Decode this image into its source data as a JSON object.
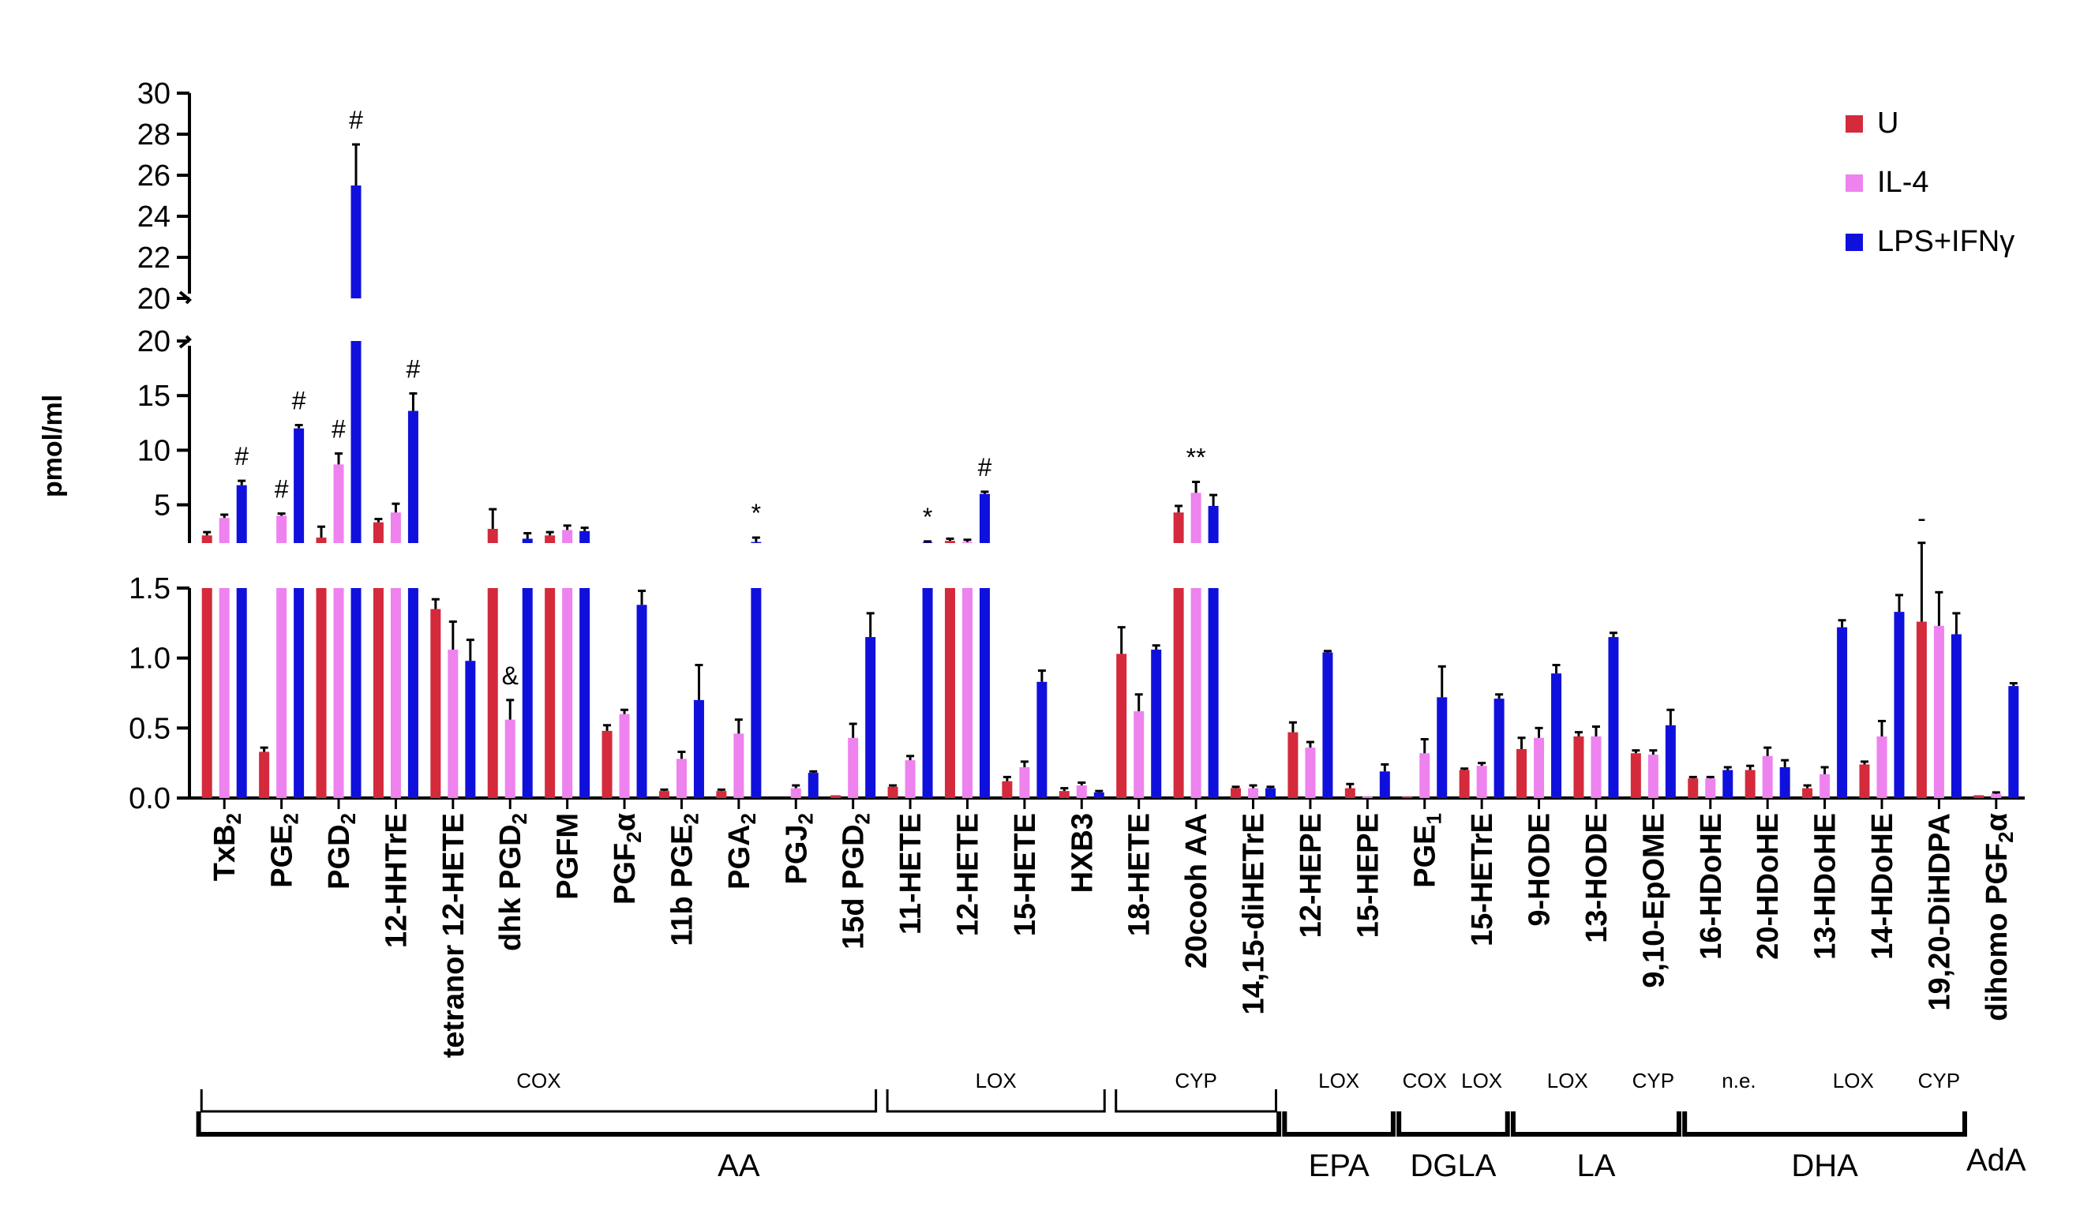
{
  "chart_data": {
    "type": "bar",
    "ylabel": "pmol/ml",
    "series": [
      {
        "name": "U",
        "color": "#d42a3c"
      },
      {
        "name": "IL-4",
        "color": "#ee82ee"
      },
      {
        "name": "LPS+IFNγ",
        "color": "#1010dd"
      }
    ],
    "axis_segments": [
      {
        "id": "top",
        "ylim": [
          20,
          30
        ],
        "ticks": [
          "20",
          "22",
          "24",
          "26",
          "28",
          "30"
        ],
        "tick_values": [
          20,
          22,
          24,
          26,
          28,
          30
        ]
      },
      {
        "id": "middle",
        "ylim": [
          1.5,
          20
        ],
        "ticks": [
          "5",
          "10",
          "15",
          "20"
        ],
        "tick_values": [
          5,
          10,
          15,
          20
        ]
      },
      {
        "id": "bottom",
        "ylim": [
          0,
          1.5
        ],
        "ticks": [
          "0.0",
          "0.5",
          "1.0",
          "1.5"
        ],
        "tick_values": [
          0,
          0.5,
          1.0,
          1.5
        ]
      }
    ],
    "categories": [
      {
        "label": "TxB",
        "sub": "2",
        "suffix": "",
        "values": [
          2.2,
          3.8,
          6.8
        ],
        "errors": [
          0.3,
          0.3,
          0.4
        ],
        "marks": [
          "",
          "",
          "#"
        ]
      },
      {
        "label": "PGE",
        "sub": "2",
        "suffix": "",
        "values": [
          0.33,
          4.0,
          12.0
        ],
        "errors": [
          0.03,
          0.2,
          0.3
        ],
        "marks": [
          "",
          "#",
          "#"
        ]
      },
      {
        "label": "PGD",
        "sub": "2",
        "suffix": "",
        "values": [
          2.0,
          8.7,
          25.5
        ],
        "errors": [
          1.0,
          1.0,
          2.0
        ],
        "marks": [
          "",
          "#",
          "#"
        ]
      },
      {
        "label": "12-HHTrE",
        "sub": "",
        "suffix": "",
        "values": [
          3.4,
          4.3,
          13.6
        ],
        "errors": [
          0.3,
          0.8,
          1.6
        ],
        "marks": [
          "",
          "",
          "#"
        ]
      },
      {
        "label": "tetranor 12-HETE",
        "sub": "",
        "suffix": "",
        "values": [
          1.35,
          1.06,
          0.98
        ],
        "errors": [
          0.07,
          0.2,
          0.15
        ],
        "marks": [
          "",
          "",
          ""
        ]
      },
      {
        "label": "dhk PGD",
        "sub": "2",
        "suffix": "",
        "values": [
          2.8,
          0.56,
          1.9
        ],
        "errors": [
          1.8,
          0.14,
          0.5
        ],
        "marks": [
          "",
          "&",
          ""
        ]
      },
      {
        "label": "PGFM",
        "sub": "",
        "suffix": "",
        "values": [
          2.2,
          2.7,
          2.6
        ],
        "errors": [
          0.3,
          0.4,
          0.3
        ],
        "marks": [
          "",
          "",
          ""
        ]
      },
      {
        "label": "PGF",
        "sub": "2",
        "suffix": "α",
        "values": [
          0.48,
          0.6,
          1.38
        ],
        "errors": [
          0.04,
          0.03,
          0.1
        ],
        "marks": [
          "",
          "",
          ""
        ]
      },
      {
        "label": "11b PGE",
        "sub": "2",
        "suffix": "",
        "values": [
          0.05,
          0.28,
          0.7
        ],
        "errors": [
          0.01,
          0.05,
          0.25
        ],
        "marks": [
          "",
          "",
          ""
        ]
      },
      {
        "label": "PGA",
        "sub": "2",
        "suffix": "",
        "values": [
          0.05,
          0.46,
          1.6
        ],
        "errors": [
          0.01,
          0.1,
          0.4
        ],
        "marks": [
          "",
          "",
          "*"
        ]
      },
      {
        "label": "PGJ",
        "sub": "2",
        "suffix": "",
        "values": [
          0.0,
          0.07,
          0.18
        ],
        "errors": [
          0,
          0.02,
          0.01
        ],
        "marks": [
          "",
          "",
          ""
        ]
      },
      {
        "label": "15d PGD",
        "sub": "2",
        "suffix": "",
        "values": [
          0.02,
          0.43,
          1.15
        ],
        "errors": [
          0.005,
          0.1,
          0.17
        ],
        "marks": [
          "",
          "",
          ""
        ]
      },
      {
        "label": "11-HETE",
        "sub": "",
        "suffix": "",
        "values": [
          0.08,
          0.27,
          1.55
        ],
        "errors": [
          0.01,
          0.03,
          0.1
        ],
        "marks": [
          "",
          "",
          "*"
        ]
      },
      {
        "label": "12-HETE",
        "sub": "",
        "suffix": "",
        "values": [
          1.7,
          1.6,
          6.0
        ],
        "errors": [
          0.2,
          0.2,
          0.2
        ],
        "marks": [
          "",
          "",
          "#"
        ]
      },
      {
        "label": "15-HETE",
        "sub": "",
        "suffix": "",
        "values": [
          0.12,
          0.22,
          0.83
        ],
        "errors": [
          0.03,
          0.04,
          0.08
        ],
        "marks": [
          "",
          "",
          ""
        ]
      },
      {
        "label": "HXB3",
        "sub": "",
        "suffix": "",
        "values": [
          0.05,
          0.09,
          0.04
        ],
        "errors": [
          0.02,
          0.02,
          0.01
        ],
        "marks": [
          "",
          "",
          ""
        ]
      },
      {
        "label": "18-HETE",
        "sub": "",
        "suffix": "",
        "values": [
          1.03,
          0.62,
          1.06
        ],
        "errors": [
          0.19,
          0.12,
          0.03
        ],
        "marks": [
          "",
          "",
          ""
        ]
      },
      {
        "label": "20cooh AA",
        "sub": "",
        "suffix": "",
        "values": [
          4.3,
          6.1,
          4.9
        ],
        "errors": [
          0.6,
          1.0,
          1.0
        ],
        "marks": [
          "",
          "**",
          ""
        ]
      },
      {
        "label": "14,15-diHETrE",
        "sub": "",
        "suffix": "",
        "values": [
          0.07,
          0.07,
          0.07
        ],
        "errors": [
          0.01,
          0.02,
          0.01
        ],
        "marks": [
          "",
          "",
          ""
        ]
      },
      {
        "label": "12-HEPE",
        "sub": "",
        "suffix": "",
        "values": [
          0.47,
          0.36,
          1.04
        ],
        "errors": [
          0.07,
          0.04,
          0.01
        ],
        "marks": [
          "",
          "",
          ""
        ]
      },
      {
        "label": "15-HEPE",
        "sub": "",
        "suffix": "",
        "values": [
          0.07,
          0.01,
          0.19
        ],
        "errors": [
          0.03,
          0.005,
          0.05
        ],
        "marks": [
          "",
          "",
          ""
        ]
      },
      {
        "label": "PGE",
        "sub": "1",
        "suffix": "",
        "values": [
          0.01,
          0.32,
          0.72
        ],
        "errors": [
          0.005,
          0.1,
          0.22
        ],
        "marks": [
          "",
          "",
          ""
        ]
      },
      {
        "label": "15-HETrE",
        "sub": "",
        "suffix": "",
        "values": [
          0.2,
          0.23,
          0.71
        ],
        "errors": [
          0.01,
          0.02,
          0.03
        ],
        "marks": [
          "",
          "",
          ""
        ]
      },
      {
        "label": "9-HODE",
        "sub": "",
        "suffix": "",
        "values": [
          0.35,
          0.43,
          0.89
        ],
        "errors": [
          0.08,
          0.07,
          0.06
        ],
        "marks": [
          "",
          "",
          ""
        ]
      },
      {
        "label": "13-HODE",
        "sub": "",
        "suffix": "",
        "values": [
          0.44,
          0.44,
          1.15
        ],
        "errors": [
          0.03,
          0.07,
          0.03
        ],
        "marks": [
          "",
          "",
          ""
        ]
      },
      {
        "label": "9,10-EpOME",
        "sub": "",
        "suffix": "",
        "values": [
          0.32,
          0.31,
          0.52
        ],
        "errors": [
          0.02,
          0.03,
          0.11
        ],
        "marks": [
          "",
          "",
          ""
        ]
      },
      {
        "label": "16-HDoHE",
        "sub": "",
        "suffix": "",
        "values": [
          0.14,
          0.14,
          0.2
        ],
        "errors": [
          0.01,
          0.01,
          0.02
        ],
        "marks": [
          "",
          "",
          ""
        ]
      },
      {
        "label": "20-HDoHE",
        "sub": "",
        "suffix": "",
        "values": [
          0.2,
          0.3,
          0.22
        ],
        "errors": [
          0.03,
          0.06,
          0.05
        ],
        "marks": [
          "",
          "",
          ""
        ]
      },
      {
        "label": "13-HDoHE",
        "sub": "",
        "suffix": "",
        "values": [
          0.07,
          0.17,
          1.22
        ],
        "errors": [
          0.02,
          0.05,
          0.05
        ],
        "marks": [
          "",
          "",
          ""
        ]
      },
      {
        "label": "14-HDoHE",
        "sub": "",
        "suffix": "",
        "values": [
          0.24,
          0.44,
          1.33
        ],
        "errors": [
          0.02,
          0.11,
          0.12
        ],
        "marks": [
          "",
          "",
          ""
        ]
      },
      {
        "label": "19,20-DiHDPA",
        "sub": "",
        "suffix": "",
        "values": [
          1.26,
          1.23,
          1.17
        ],
        "errors": [
          0.26,
          0.24,
          0.15
        ],
        "marks": [
          "-",
          "",
          ""
        ]
      },
      {
        "label": "dihomo PGF",
        "sub": "2",
        "suffix": "α",
        "values": [
          0.02,
          0.03,
          0.8
        ],
        "errors": [
          0.005,
          0.01,
          0.02
        ],
        "marks": [
          "",
          "",
          ""
        ]
      }
    ],
    "enzyme_groups": [
      {
        "label": "COX",
        "from": 0,
        "to": 11
      },
      {
        "label": "LOX",
        "from": 12,
        "to": 15
      },
      {
        "label": "CYP",
        "from": 16,
        "to": 18
      },
      {
        "label": "LOX",
        "from": 19,
        "to": 20
      },
      {
        "label": "COX",
        "from": 21,
        "to": 21
      },
      {
        "label": "LOX",
        "from": 22,
        "to": 22
      },
      {
        "label": "LOX",
        "from": 23,
        "to": 24
      },
      {
        "label": "CYP",
        "from": 25,
        "to": 25
      },
      {
        "label": "n.e.",
        "from": 26,
        "to": 27
      },
      {
        "label": "LOX",
        "from": 28,
        "to": 29
      },
      {
        "label": "CYP",
        "from": 30,
        "to": 30
      }
    ],
    "substrate_groups": [
      {
        "label": "AA",
        "from": 0,
        "to": 18
      },
      {
        "label": "EPA",
        "from": 19,
        "to": 20
      },
      {
        "label": "DGLA",
        "from": 21,
        "to": 22
      },
      {
        "label": "LA",
        "from": 23,
        "to": 25
      },
      {
        "label": "DHA",
        "from": 26,
        "to": 30
      },
      {
        "label": "AdA",
        "from": 31,
        "to": 31
      }
    ]
  }
}
